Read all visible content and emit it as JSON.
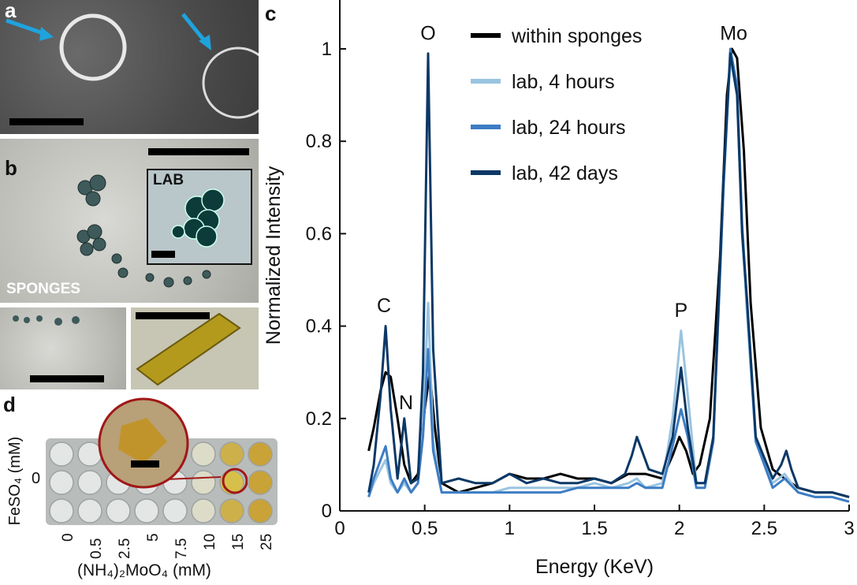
{
  "panels": {
    "a": {
      "label": "a"
    },
    "b": {
      "label": "b",
      "inset_label": "LAB",
      "main_label": "SPONGES"
    },
    "c": {
      "label": "c"
    },
    "d": {
      "label": "d",
      "y_axis_label": "FeSO₄ (mM)",
      "y_tick": "0",
      "x_axis_label": "(NH₄)₂MoO₄ (mM)",
      "x_ticks": [
        "0",
        "0.5",
        "2.5",
        "5",
        "7.5",
        "10",
        "15",
        "25"
      ]
    }
  },
  "colors": {
    "within_sponges": "#000000",
    "lab_4h": "#99c4e0",
    "lab_24h": "#3d7dc4",
    "lab_42d": "#0c3866"
  },
  "chart_data": {
    "type": "line",
    "xlabel": "Energy (KeV)",
    "ylabel": "Normalized Intensity",
    "xlim": [
      0,
      3
    ],
    "ylim": [
      0,
      1.1
    ],
    "xticks": [
      0,
      0.5,
      1,
      1.5,
      2,
      2.5,
      3
    ],
    "yticks": [
      0,
      0.2,
      0.4,
      0.6,
      0.8,
      1
    ],
    "xtick_labels": [
      "0",
      "0.5",
      "1",
      "1.5",
      "2",
      "2.5",
      "3"
    ],
    "ytick_labels": [
      "0",
      "0.2",
      "0.4",
      "0.6",
      "0.8",
      "1"
    ],
    "legend_position": "top-left",
    "annotations": [
      {
        "text": "C",
        "x": 0.26,
        "y": 0.43
      },
      {
        "text": "N",
        "x": 0.39,
        "y": 0.22
      },
      {
        "text": "O",
        "x": 0.52,
        "y": 1.02
      },
      {
        "text": "P",
        "x": 2.01,
        "y": 0.42
      },
      {
        "text": "Mo",
        "x": 2.32,
        "y": 1.02
      }
    ],
    "series": [
      {
        "name": "within sponges",
        "color": "#000000",
        "x": [
          0.17,
          0.2,
          0.24,
          0.27,
          0.3,
          0.34,
          0.38,
          0.42,
          0.46,
          0.5,
          0.53,
          0.56,
          0.6,
          0.7,
          0.8,
          0.9,
          1.0,
          1.1,
          1.2,
          1.3,
          1.4,
          1.5,
          1.6,
          1.7,
          1.8,
          1.9,
          1.96,
          2.0,
          2.04,
          2.08,
          2.12,
          2.18,
          2.24,
          2.28,
          2.31,
          2.34,
          2.38,
          2.42,
          2.48,
          2.55,
          2.62,
          2.7,
          2.8,
          2.9,
          3.0
        ],
        "y": [
          0.13,
          0.18,
          0.26,
          0.3,
          0.29,
          0.2,
          0.1,
          0.06,
          0.08,
          0.22,
          0.3,
          0.18,
          0.06,
          0.04,
          0.05,
          0.06,
          0.08,
          0.07,
          0.07,
          0.08,
          0.07,
          0.07,
          0.06,
          0.08,
          0.08,
          0.07,
          0.12,
          0.16,
          0.13,
          0.08,
          0.1,
          0.2,
          0.55,
          0.9,
          1.0,
          0.98,
          0.78,
          0.45,
          0.18,
          0.09,
          0.07,
          0.05,
          0.04,
          0.04,
          0.03
        ]
      },
      {
        "name": "lab, 4 hours",
        "color": "#99c4e0",
        "x": [
          0.17,
          0.2,
          0.24,
          0.27,
          0.3,
          0.34,
          0.38,
          0.42,
          0.46,
          0.49,
          0.52,
          0.55,
          0.6,
          0.7,
          0.8,
          0.9,
          1.0,
          1.1,
          1.2,
          1.3,
          1.4,
          1.5,
          1.6,
          1.7,
          1.75,
          1.8,
          1.9,
          1.96,
          2.01,
          2.05,
          2.1,
          2.15,
          2.2,
          2.26,
          2.3,
          2.34,
          2.37,
          2.4,
          2.45,
          2.55,
          2.62,
          2.7,
          2.8,
          2.9,
          3.0
        ],
        "y": [
          0.03,
          0.06,
          0.09,
          0.11,
          0.06,
          0.04,
          0.06,
          0.04,
          0.06,
          0.18,
          0.45,
          0.15,
          0.04,
          0.04,
          0.04,
          0.04,
          0.05,
          0.05,
          0.05,
          0.05,
          0.05,
          0.06,
          0.05,
          0.06,
          0.07,
          0.05,
          0.06,
          0.2,
          0.39,
          0.25,
          0.06,
          0.06,
          0.15,
          0.7,
          0.98,
          0.9,
          0.6,
          0.42,
          0.15,
          0.06,
          0.08,
          0.04,
          0.03,
          0.03,
          0.02
        ]
      },
      {
        "name": "lab, 24 hours",
        "color": "#3d7dc4",
        "x": [
          0.17,
          0.2,
          0.24,
          0.27,
          0.3,
          0.34,
          0.38,
          0.42,
          0.46,
          0.49,
          0.52,
          0.55,
          0.6,
          0.7,
          0.8,
          0.9,
          1.0,
          1.1,
          1.2,
          1.3,
          1.4,
          1.5,
          1.6,
          1.7,
          1.75,
          1.8,
          1.9,
          1.96,
          2.01,
          2.05,
          2.1,
          2.15,
          2.2,
          2.26,
          2.3,
          2.34,
          2.37,
          2.4,
          2.45,
          2.55,
          2.62,
          2.7,
          2.8,
          2.9,
          3.0
        ],
        "y": [
          0.03,
          0.07,
          0.11,
          0.14,
          0.07,
          0.04,
          0.07,
          0.04,
          0.06,
          0.16,
          0.35,
          0.13,
          0.04,
          0.04,
          0.04,
          0.04,
          0.04,
          0.04,
          0.04,
          0.04,
          0.05,
          0.05,
          0.05,
          0.05,
          0.06,
          0.05,
          0.05,
          0.14,
          0.22,
          0.16,
          0.05,
          0.05,
          0.15,
          0.7,
          1.0,
          0.92,
          0.62,
          0.44,
          0.15,
          0.05,
          0.07,
          0.04,
          0.03,
          0.03,
          0.02
        ]
      },
      {
        "name": "lab, 42 days",
        "color": "#0c3866",
        "x": [
          0.17,
          0.2,
          0.24,
          0.27,
          0.3,
          0.34,
          0.38,
          0.42,
          0.46,
          0.49,
          0.52,
          0.55,
          0.6,
          0.7,
          0.8,
          0.9,
          1.0,
          1.1,
          1.2,
          1.3,
          1.4,
          1.5,
          1.6,
          1.68,
          1.72,
          1.75,
          1.78,
          1.82,
          1.9,
          1.96,
          2.01,
          2.05,
          2.1,
          2.15,
          2.2,
          2.26,
          2.3,
          2.34,
          2.37,
          2.4,
          2.45,
          2.55,
          2.6,
          2.63,
          2.66,
          2.7,
          2.8,
          2.9,
          3.0
        ],
        "y": [
          0.04,
          0.1,
          0.25,
          0.4,
          0.22,
          0.07,
          0.2,
          0.06,
          0.07,
          0.3,
          0.99,
          0.35,
          0.06,
          0.07,
          0.06,
          0.06,
          0.08,
          0.06,
          0.07,
          0.06,
          0.06,
          0.07,
          0.06,
          0.08,
          0.12,
          0.16,
          0.13,
          0.09,
          0.08,
          0.16,
          0.31,
          0.18,
          0.06,
          0.06,
          0.16,
          0.72,
          0.99,
          0.9,
          0.6,
          0.45,
          0.16,
          0.07,
          0.1,
          0.13,
          0.09,
          0.05,
          0.04,
          0.04,
          0.03
        ]
      }
    ]
  }
}
